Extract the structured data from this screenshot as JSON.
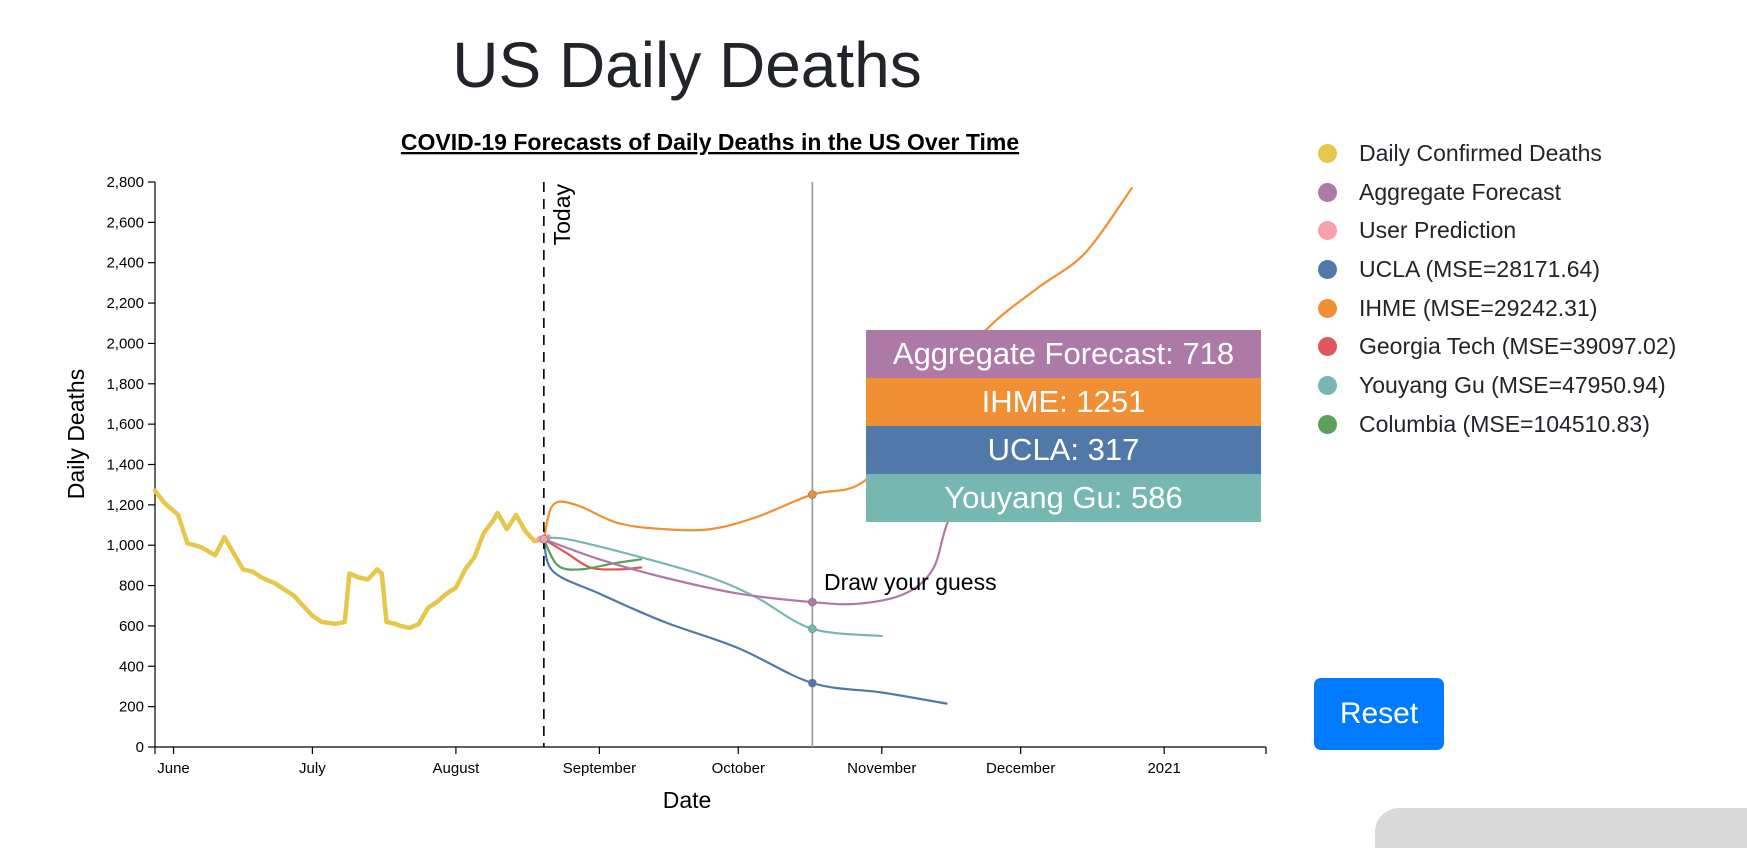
{
  "page": {
    "title": "US Daily Deaths"
  },
  "colors": {
    "confirmed": "#e5c84b",
    "aggregate": "#ad7aa8",
    "user": "#f7a0ab",
    "ucla": "#5079aa",
    "ihme": "#f08f33",
    "georgia_tech": "#e15658",
    "youyang_gu": "#77b7b2",
    "columbia": "#5aa05b"
  },
  "legend": [
    {
      "label": "Daily Confirmed Deaths",
      "color": "#e5c84b"
    },
    {
      "label": "Aggregate Forecast",
      "color": "#ad7aa8"
    },
    {
      "label": "User Prediction",
      "color": "#f7a0ab"
    },
    {
      "label": "UCLA (MSE=28171.64)",
      "color": "#5079aa"
    },
    {
      "label": "IHME (MSE=29242.31)",
      "color": "#f08f33"
    },
    {
      "label": "Georgia Tech (MSE=39097.02)",
      "color": "#e15658"
    },
    {
      "label": "Youyang Gu (MSE=47950.94)",
      "color": "#77b7b2"
    },
    {
      "label": "Columbia (MSE=104510.83)",
      "color": "#5aa05b"
    }
  ],
  "tooltip": [
    {
      "text": "Aggregate Forecast: 718",
      "color": "#ad7aa8"
    },
    {
      "text": "IHME: 1251",
      "color": "#f08f33"
    },
    {
      "text": "UCLA: 317",
      "color": "#5079aa"
    },
    {
      "text": "Youyang Gu: 586",
      "color": "#77b7b2"
    }
  ],
  "controls": {
    "reset_label": "Reset"
  },
  "chart_data": {
    "type": "line",
    "title": "COVID-19 Forecasts of Daily Deaths in the US Over Time",
    "xlabel": "Date",
    "ylabel": "Daily Deaths",
    "xlim": [
      "2020-05-28",
      "2021-01-23"
    ],
    "ylim": [
      0,
      2800
    ],
    "y_ticks": [
      0,
      200,
      400,
      600,
      800,
      1000,
      1200,
      1400,
      1600,
      1800,
      2000,
      2200,
      2400,
      2600,
      2800
    ],
    "x_ticks": [
      {
        "label": "June",
        "date": "2020-06-01"
      },
      {
        "label": "July",
        "date": "2020-07-01"
      },
      {
        "label": "August",
        "date": "2020-08-01"
      },
      {
        "label": "September",
        "date": "2020-09-01"
      },
      {
        "label": "October",
        "date": "2020-10-01"
      },
      {
        "label": "November",
        "date": "2020-11-01"
      },
      {
        "label": "December",
        "date": "2020-12-01"
      },
      {
        "label": "2021",
        "date": "2021-01-01"
      }
    ],
    "today": {
      "label": "Today",
      "date": "2020-08-20"
    },
    "hover": {
      "date": "2020-10-17"
    },
    "draw_prompt": "Draw your guess",
    "grid": false,
    "legend_position": "right",
    "series": [
      {
        "name": "Daily Confirmed Deaths",
        "color": "#e5c84b",
        "points": [
          [
            "2020-05-28",
            1270
          ],
          [
            "2020-05-30",
            1210
          ],
          [
            "2020-06-02",
            1150
          ],
          [
            "2020-06-04",
            1010
          ],
          [
            "2020-06-07",
            990
          ],
          [
            "2020-06-10",
            950
          ],
          [
            "2020-06-12",
            1040
          ],
          [
            "2020-06-14",
            960
          ],
          [
            "2020-06-16",
            880
          ],
          [
            "2020-06-18",
            870
          ],
          [
            "2020-06-20",
            840
          ],
          [
            "2020-06-23",
            810
          ],
          [
            "2020-06-25",
            780
          ],
          [
            "2020-06-27",
            750
          ],
          [
            "2020-06-29",
            700
          ],
          [
            "2020-07-01",
            650
          ],
          [
            "2020-07-03",
            620
          ],
          [
            "2020-07-06",
            610
          ],
          [
            "2020-07-08",
            620
          ],
          [
            "2020-07-09",
            860
          ],
          [
            "2020-07-11",
            840
          ],
          [
            "2020-07-13",
            830
          ],
          [
            "2020-07-15",
            880
          ],
          [
            "2020-07-16",
            860
          ],
          [
            "2020-07-17",
            620
          ],
          [
            "2020-07-19",
            610
          ],
          [
            "2020-07-20",
            600
          ],
          [
            "2020-07-22",
            590
          ],
          [
            "2020-07-24",
            610
          ],
          [
            "2020-07-26",
            690
          ],
          [
            "2020-07-28",
            720
          ],
          [
            "2020-07-30",
            760
          ],
          [
            "2020-08-01",
            790
          ],
          [
            "2020-08-03",
            880
          ],
          [
            "2020-08-05",
            940
          ],
          [
            "2020-08-07",
            1060
          ],
          [
            "2020-08-09",
            1120
          ],
          [
            "2020-08-10",
            1160
          ],
          [
            "2020-08-12",
            1080
          ],
          [
            "2020-08-14",
            1150
          ],
          [
            "2020-08-16",
            1070
          ],
          [
            "2020-08-18",
            1020
          ],
          [
            "2020-08-20",
            1030
          ]
        ]
      },
      {
        "name": "User Prediction",
        "color": "#f7a0ab",
        "points": [
          [
            "2020-08-19",
            1030
          ],
          [
            "2020-08-21",
            1040
          ]
        ]
      },
      {
        "name": "Georgia Tech (MSE=39097.02)",
        "color": "#e15658",
        "points": [
          [
            "2020-08-20",
            1030
          ],
          [
            "2020-08-25",
            960
          ],
          [
            "2020-08-30",
            890
          ],
          [
            "2020-09-05",
            880
          ],
          [
            "2020-09-10",
            890
          ]
        ]
      },
      {
        "name": "Columbia (MSE=104510.83)",
        "color": "#5aa05b",
        "points": [
          [
            "2020-08-20",
            1030
          ],
          [
            "2020-08-23",
            900
          ],
          [
            "2020-08-28",
            880
          ],
          [
            "2020-09-04",
            910
          ],
          [
            "2020-09-10",
            930
          ]
        ]
      },
      {
        "name": "Youyang Gu (MSE=47950.94)",
        "color": "#77b7b2",
        "points": [
          [
            "2020-08-20",
            1030
          ],
          [
            "2020-08-25",
            1030
          ],
          [
            "2020-09-10",
            940
          ],
          [
            "2020-09-25",
            840
          ],
          [
            "2020-10-05",
            740
          ],
          [
            "2020-10-17",
            586
          ],
          [
            "2020-11-01",
            550
          ]
        ]
      },
      {
        "name": "UCLA (MSE=28171.64)",
        "color": "#5079aa",
        "points": [
          [
            "2020-08-20",
            1030
          ],
          [
            "2020-08-22",
            870
          ],
          [
            "2020-09-01",
            760
          ],
          [
            "2020-09-15",
            620
          ],
          [
            "2020-10-01",
            490
          ],
          [
            "2020-10-17",
            317
          ],
          [
            "2020-11-01",
            270
          ],
          [
            "2020-11-15",
            215
          ]
        ]
      },
      {
        "name": "IHME (MSE=29242.31)",
        "color": "#f08f33",
        "points": [
          [
            "2020-08-20",
            1030
          ],
          [
            "2020-08-22",
            1200
          ],
          [
            "2020-08-27",
            1200
          ],
          [
            "2020-09-05",
            1110
          ],
          [
            "2020-09-15",
            1080
          ],
          [
            "2020-09-25",
            1080
          ],
          [
            "2020-10-05",
            1140
          ],
          [
            "2020-10-17",
            1251
          ],
          [
            "2020-10-27",
            1300
          ],
          [
            "2020-11-05",
            1500
          ],
          [
            "2020-11-15",
            1850
          ],
          [
            "2020-11-25",
            2100
          ],
          [
            "2020-12-05",
            2280
          ],
          [
            "2020-12-15",
            2450
          ],
          [
            "2020-12-25",
            2770
          ]
        ]
      },
      {
        "name": "Aggregate Forecast",
        "color": "#ad7aa8",
        "points": [
          [
            "2020-08-20",
            1030
          ],
          [
            "2020-09-01",
            930
          ],
          [
            "2020-09-15",
            840
          ],
          [
            "2020-10-01",
            760
          ],
          [
            "2020-10-17",
            718
          ],
          [
            "2020-10-27",
            710
          ],
          [
            "2020-11-06",
            760
          ],
          [
            "2020-11-12",
            880
          ],
          [
            "2020-11-15",
            1100
          ],
          [
            "2020-11-20",
            1400
          ]
        ]
      }
    ],
    "markers": [
      {
        "name": "IHME (MSE=29242.31)",
        "date": "2020-10-17",
        "value": 1251,
        "color": "#f08f33"
      },
      {
        "name": "Aggregate Forecast",
        "date": "2020-10-17",
        "value": 718,
        "color": "#ad7aa8"
      },
      {
        "name": "Youyang Gu (MSE=47950.94)",
        "date": "2020-10-17",
        "value": 586,
        "color": "#77b7b2"
      },
      {
        "name": "UCLA (MSE=28171.64)",
        "date": "2020-10-17",
        "value": 317,
        "color": "#5079aa"
      },
      {
        "name": "User Prediction",
        "date": "2020-08-20",
        "value": 1030,
        "color": "#f7a0ab"
      }
    ]
  }
}
